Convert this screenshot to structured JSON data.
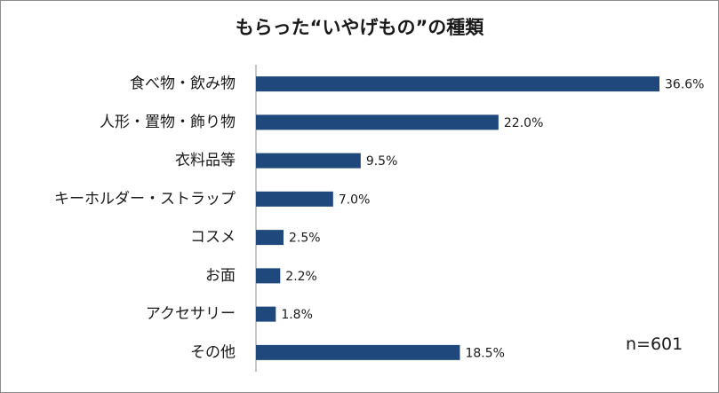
{
  "chart_data": {
    "type": "bar",
    "orientation": "horizontal",
    "title": "もらった“いやげもの”の種類",
    "categories": [
      "食べ物・飲み物",
      "人形・置物・飾り物",
      "衣料品等",
      "キーホルダー・ストラップ",
      "コスメ",
      "お面",
      "アクセサリー",
      "その他"
    ],
    "values": [
      36.6,
      22.0,
      9.5,
      7.0,
      2.5,
      2.2,
      1.8,
      18.5
    ],
    "value_labels": [
      "36.6%",
      "22.0%",
      "9.5%",
      "7.0%",
      "2.5%",
      "2.2%",
      "1.8%",
      "18.5%"
    ],
    "bar_color": "#1f497d",
    "xlim": [
      0,
      36.6
    ],
    "grid": false,
    "note": "n=601"
  }
}
